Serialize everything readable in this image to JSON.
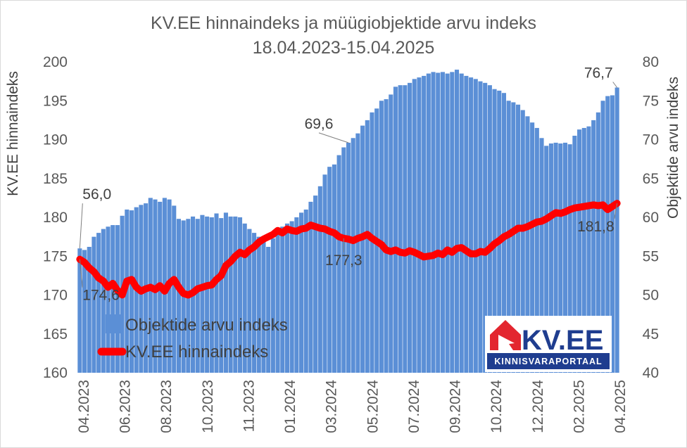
{
  "chart_data": {
    "type": "bar+line",
    "title": "KV.EE hinnaindeks ja müügiobjektide arvu indeks",
    "subtitle": "18.04.2023-15.04.2025",
    "ylabel": "KV.EE hinnaindeks",
    "y2label": "Objektide arvu indeks",
    "ylim": [
      160,
      200
    ],
    "y2lim": [
      40,
      80
    ],
    "yticks": [
      "160",
      "165",
      "170",
      "175",
      "180",
      "185",
      "190",
      "195",
      "200"
    ],
    "y2ticks": [
      "40",
      "45",
      "50",
      "55",
      "60",
      "65",
      "70",
      "75",
      "80"
    ],
    "xticks": [
      "04.2023",
      "06.2023",
      "08.2023",
      "10.2023",
      "11.2023",
      "01.2024",
      "03.2024",
      "05.2024",
      "07.2024",
      "09.2024",
      "10.2024",
      "12.2024",
      "02.2025",
      "04.2025"
    ],
    "grid": false,
    "legend_position": "bottom-left",
    "series": [
      {
        "name": "Objektide arvu indeks",
        "type": "bar",
        "axis": "right",
        "color": "#5b8fd6",
        "values": [
          56.0,
          55.8,
          56.2,
          57.5,
          58.0,
          58.5,
          58.8,
          59.0,
          59.0,
          60.2,
          61.0,
          60.9,
          61.3,
          61.6,
          61.8,
          62.5,
          62.3,
          62.0,
          62.5,
          62.3,
          61.5,
          59.8,
          59.6,
          59.8,
          60.1,
          59.8,
          60.3,
          60.1,
          60.0,
          60.5,
          59.9,
          60.6,
          60.1,
          60.1,
          60.0,
          59.2,
          58.5,
          58.0,
          57.5,
          57.0,
          56.2,
          57.3,
          58.3,
          58.8,
          59.2,
          59.5,
          60.0,
          60.6,
          61.0,
          62.0,
          62.8,
          64.0,
          65.5,
          66.5,
          66.8,
          68.0,
          69.0,
          69.6,
          70.2,
          70.8,
          71.8,
          72.5,
          73.5,
          74.0,
          75.0,
          75.2,
          75.8,
          76.8,
          77.0,
          77.0,
          77.3,
          77.8,
          78.0,
          78.2,
          78.5,
          78.7,
          78.6,
          78.7,
          78.5,
          78.7,
          79.0,
          78.5,
          78.2,
          78.0,
          77.8,
          77.5,
          77.3,
          77.0,
          76.5,
          76.3,
          76.0,
          75.0,
          74.8,
          74.5,
          73.8,
          73.0,
          72.2,
          71.5,
          70.2,
          69.2,
          69.5,
          69.6,
          69.5,
          69.6,
          69.4,
          70.5,
          71.3,
          71.5,
          71.7,
          72.5,
          73.5,
          75.0,
          75.6,
          75.7,
          76.7
        ]
      },
      {
        "name": "KV.EE hinnaindeks",
        "type": "line",
        "axis": "left",
        "color": "#ff0000",
        "values": [
          174.6,
          174.2,
          173.5,
          173.0,
          172.2,
          171.8,
          171.0,
          171.5,
          170.6,
          170.0,
          171.8,
          172.0,
          171.0,
          170.5,
          170.8,
          171.0,
          170.7,
          171.2,
          170.5,
          171.5,
          172.0,
          171.0,
          170.2,
          170.0,
          170.3,
          170.8,
          171.0,
          171.2,
          171.3,
          172.0,
          172.5,
          173.8,
          174.3,
          175.0,
          175.5,
          175.2,
          175.8,
          176.2,
          176.8,
          177.2,
          177.5,
          177.8,
          178.3,
          178.0,
          178.5,
          178.3,
          178.2,
          178.5,
          178.6,
          179.0,
          178.8,
          178.6,
          178.5,
          178.2,
          178.0,
          177.5,
          177.3,
          177.2,
          177.0,
          177.3,
          177.5,
          177.8,
          177.3,
          176.9,
          176.5,
          175.8,
          175.6,
          175.8,
          175.5,
          175.4,
          175.7,
          175.5,
          175.2,
          174.9,
          175.0,
          175.1,
          175.4,
          175.2,
          175.8,
          175.5,
          176.0,
          176.1,
          175.7,
          175.3,
          175.3,
          175.6,
          175.5,
          176.0,
          176.6,
          177.0,
          177.5,
          177.8,
          178.2,
          178.6,
          178.6,
          178.8,
          179.1,
          179.4,
          179.5,
          179.8,
          180.2,
          180.6,
          180.5,
          180.7,
          181.0,
          181.2,
          181.3,
          181.4,
          181.5,
          181.6,
          181.5,
          181.6,
          181.0,
          181.4,
          181.8
        ]
      }
    ],
    "data_labels": [
      {
        "series": "Objektide arvu indeks",
        "index": 0,
        "text": "56,0"
      },
      {
        "series": "KV.EE hinnaindeks",
        "index": 0,
        "text": "174,6"
      },
      {
        "series": "Objektide arvu indeks",
        "index": 57,
        "text": "69,6"
      },
      {
        "series": "KV.EE hinnaindeks",
        "index": 56,
        "text": "177,3"
      },
      {
        "series": "Objektide arvu indeks",
        "index": 114,
        "text": "76,7"
      },
      {
        "series": "KV.EE hinnaindeks",
        "index": 114,
        "text": "181,8"
      }
    ]
  },
  "logo": {
    "brand": "KV.EE",
    "tagline": "KINNISVARAPORTAAL",
    "brand_color": "#1f3d8f",
    "accent_color": "#e3262f"
  }
}
